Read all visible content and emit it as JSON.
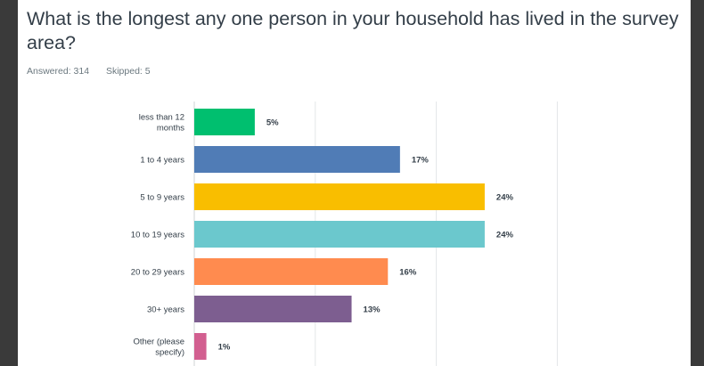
{
  "survey": {
    "question": "What is the longest any one person in your household has lived in the survey area?",
    "answered_label": "Answered: 314",
    "skipped_label": "Skipped: 5"
  },
  "chart_data": {
    "type": "bar",
    "orientation": "horizontal",
    "categories": [
      [
        "less than 12",
        "months"
      ],
      [
        "1 to 4 years"
      ],
      [
        "5 to 9 years"
      ],
      [
        "10 to 19 years"
      ],
      [
        "20 to 29 years"
      ],
      [
        "30+ years"
      ],
      [
        "Other (please",
        "specify)"
      ]
    ],
    "values": [
      5,
      17,
      24,
      24,
      16,
      13,
      1
    ],
    "value_labels": [
      "5%",
      "17%",
      "24%",
      "24%",
      "16%",
      "13%",
      "1%"
    ],
    "colors": [
      "#00bf6f",
      "#507cb6",
      "#f9be00",
      "#6bc8cd",
      "#ff8b4f",
      "#7d5e90",
      "#d25f90"
    ],
    "xlim": [
      0,
      30
    ],
    "grid": true,
    "title": "",
    "xlabel": "",
    "ylabel": ""
  }
}
